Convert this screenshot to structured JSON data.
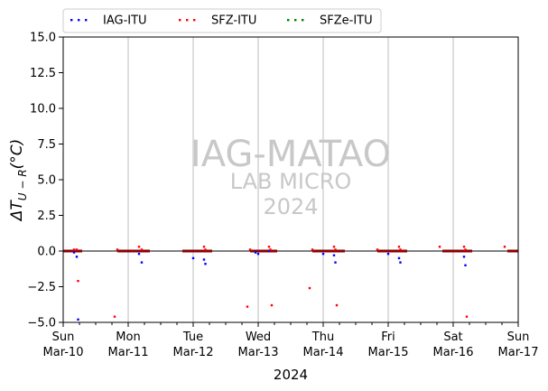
{
  "chart_data": {
    "type": "scatter",
    "title": "",
    "xlabel": "2024",
    "ylabel": "ΔT_{U−R}(°C)",
    "ylabel_main": "ΔT",
    "ylabel_sub": "U − R",
    "ylabel_unit": "(°C)",
    "x_range": [
      "2024-03-10",
      "2024-03-17"
    ],
    "ylim": [
      -5.0,
      15.0
    ],
    "y_ticks": [
      -5.0,
      -2.5,
      0.0,
      2.5,
      5.0,
      7.5,
      10.0,
      12.5,
      15.0
    ],
    "y_tick_labels": [
      "−5.0",
      "−2.5",
      "0.0",
      "2.5",
      "5.0",
      "7.5",
      "10.0",
      "12.5",
      "15.0"
    ],
    "x_ticks": [
      {
        "day": "Sun",
        "date": "Mar-10"
      },
      {
        "day": "Mon",
        "date": "Mar-11"
      },
      {
        "day": "Tue",
        "date": "Mar-12"
      },
      {
        "day": "Wed",
        "date": "Mar-13"
      },
      {
        "day": "Thu",
        "date": "Mar-14"
      },
      {
        "day": "Fri",
        "date": "Mar-15"
      },
      {
        "day": "Sat",
        "date": "Mar-16"
      },
      {
        "day": "Sun",
        "date": "Mar-17"
      }
    ],
    "grid": "vertical lines at day boundaries",
    "zero_line": true,
    "legend_position": "top, above plot",
    "watermark": {
      "line1": "IAG-MATAO",
      "line2": "LAB MICRO",
      "line3": "2024"
    },
    "series": [
      {
        "name": "IAG-ITU",
        "color": "#0000ff",
        "points": [
          [
            "2024-03-10 04:00",
            -0.1
          ],
          [
            "2024-03-10 05:00",
            -0.4
          ],
          [
            "2024-03-10 05:30",
            -4.8
          ],
          [
            "2024-03-11 04:00",
            -0.2
          ],
          [
            "2024-03-11 05:00",
            -0.8
          ],
          [
            "2024-03-12 00:00",
            -0.5
          ],
          [
            "2024-03-12 04:00",
            -0.6
          ],
          [
            "2024-03-12 04:30",
            -0.9
          ],
          [
            "2024-03-12 23:00",
            -0.1
          ],
          [
            "2024-03-13 00:00",
            -0.2
          ],
          [
            "2024-03-13 04:00",
            0.0
          ],
          [
            "2024-03-14 00:00",
            -0.2
          ],
          [
            "2024-03-14 04:00",
            -0.3
          ],
          [
            "2024-03-14 04:30",
            -0.8
          ],
          [
            "2024-03-15 00:00",
            -0.2
          ],
          [
            "2024-03-15 04:00",
            -0.5
          ],
          [
            "2024-03-15 04:30",
            -0.8
          ],
          [
            "2024-03-16 04:00",
            -0.4
          ],
          [
            "2024-03-16 04:30",
            -1.0
          ]
        ]
      },
      {
        "name": "SFZ-ITU",
        "color": "#ff0000",
        "points": [
          [
            "2024-03-10 04:00",
            0.1
          ],
          [
            "2024-03-10 05:00",
            0.1
          ],
          [
            "2024-03-10 05:30",
            -2.1
          ],
          [
            "2024-03-10 19:00",
            -4.6
          ],
          [
            "2024-03-10 20:00",
            0.1
          ],
          [
            "2024-03-11 04:00",
            0.3
          ],
          [
            "2024-03-11 05:00",
            0.1
          ],
          [
            "2024-03-12 04:00",
            0.3
          ],
          [
            "2024-03-12 04:30",
            0.1
          ],
          [
            "2024-03-12 20:00",
            -3.9
          ],
          [
            "2024-03-12 21:00",
            0.1
          ],
          [
            "2024-03-13 04:00",
            0.3
          ],
          [
            "2024-03-13 04:30",
            0.1
          ],
          [
            "2024-03-13 05:00",
            -3.8
          ],
          [
            "2024-03-13 19:00",
            -2.6
          ],
          [
            "2024-03-13 20:00",
            0.1
          ],
          [
            "2024-03-14 04:00",
            0.3
          ],
          [
            "2024-03-14 04:30",
            0.1
          ],
          [
            "2024-03-14 05:00",
            -3.8
          ],
          [
            "2024-03-14 20:00",
            0.1
          ],
          [
            "2024-03-15 04:00",
            0.3
          ],
          [
            "2024-03-15 04:30",
            0.1
          ],
          [
            "2024-03-15 19:00",
            0.3
          ],
          [
            "2024-03-16 04:00",
            0.3
          ],
          [
            "2024-03-16 04:30",
            0.1
          ],
          [
            "2024-03-16 05:00",
            -4.6
          ],
          [
            "2024-03-16 19:00",
            0.3
          ]
        ]
      },
      {
        "name": "SFZe-ITU",
        "color": "#008000",
        "points": []
      }
    ],
    "near_zero_segments": [
      [
        "2024-03-10 00:00",
        "2024-03-10 07:00"
      ],
      [
        "2024-03-10 20:00",
        "2024-03-11 08:00"
      ],
      [
        "2024-03-11 20:00",
        "2024-03-12 07:00"
      ],
      [
        "2024-03-12 21:00",
        "2024-03-13 07:00"
      ],
      [
        "2024-03-13 20:00",
        "2024-03-14 08:00"
      ],
      [
        "2024-03-14 20:00",
        "2024-03-15 07:00"
      ],
      [
        "2024-03-15 20:00",
        "2024-03-16 07:00"
      ],
      [
        "2024-03-16 20:00",
        "2024-03-17 00:00"
      ]
    ]
  }
}
